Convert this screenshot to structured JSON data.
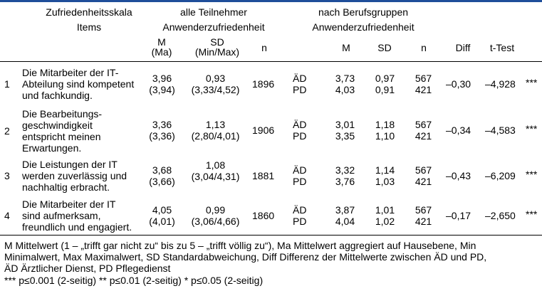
{
  "colors": {
    "accent_bar": "#1f4e9a"
  },
  "header": {
    "col_scale_1": "Zufriedenheitsskala",
    "col_scale_2": "Items",
    "group_all_1": "alle Teilnehmer",
    "group_all_2": "Anwenderzufriedenheit",
    "group_prof_1": "nach Berufsgruppen",
    "group_prof_2": "Anwenderzufriedenheit",
    "m_1": "M",
    "m_2": "(Ma)",
    "sd_1": "SD",
    "sd_2": "(Min/Max)",
    "n": "n",
    "pm": "M",
    "psd": "SD",
    "pn": "n",
    "diff": "Diff",
    "ttest": "t-Test"
  },
  "rows": [
    {
      "num": "1",
      "item": [
        "Die Mitarbeiter der IT-",
        "Abteilung sind kompetent",
        "und fachkundig."
      ],
      "m": "3,96",
      "ma": "(3,94)",
      "sd": "0,93",
      "minmax": "(3,33/4,52)",
      "n": "1896",
      "g1": "ÄD",
      "g2": "PD",
      "m1": "3,73",
      "m2": "4,03",
      "sd1": "0,97",
      "sd2": "0,91",
      "n1": "567",
      "n2": "421",
      "diff": "–0,30",
      "t": "–4,928",
      "sig": "***"
    },
    {
      "num": "2",
      "item": [
        "Die Bearbeitungs-",
        "geschwindigkeit",
        "entspricht meinen",
        "Erwartungen."
      ],
      "m": "3,36",
      "ma": "(3,36)",
      "sd": "1,13",
      "minmax": "(2,80/4,01)",
      "n": "1906",
      "g1": "ÄD",
      "g2": "PD",
      "m1": "3,01",
      "m2": "3,35",
      "sd1": "1,18",
      "sd2": "1,10",
      "n1": "567",
      "n2": "421",
      "diff": "–0,34",
      "t": "–4,583",
      "sig": "***"
    },
    {
      "num": "3",
      "item": [
        "Die Leistungen der IT",
        "werden zuverlässig und",
        "nachhaltig erbracht."
      ],
      "m": "3,68",
      "ma": "(3,66)",
      "sd": "1,08",
      "minmax": "(3,04/4,31)",
      "n": "1881",
      "g1": "ÄD",
      "g2": "PD",
      "m1": "3,32",
      "m2": "3,76",
      "sd1": "1,14",
      "sd2": "1,03",
      "n1": "567",
      "n2": "421",
      "diff": "–0,43",
      "t": "–6,209",
      "sig": "***"
    },
    {
      "num": "4",
      "item": [
        "Die Mitarbeiter der IT",
        "sind aufmerksam,",
        "freundlich und engagiert."
      ],
      "m": "4,05",
      "ma": "(4,01)",
      "sd": "0,99",
      "minmax": "(3,06/4,66)",
      "n": "1860",
      "g1": "ÄD",
      "g2": "PD",
      "m1": "3,87",
      "m2": "4,04",
      "sd1": "1,01",
      "sd2": "1,02",
      "n1": "567",
      "n2": "421",
      "diff": "–0,17",
      "t": "–2,650",
      "sig": "***"
    }
  ],
  "footnote": {
    "line1": "M Mittelwert (1 – „trifft gar nicht zu“ bis zu 5 – „trifft völlig zu“), Ma Mittelwert aggregiert auf Hausebene, Min",
    "line2": "Minimalwert, Max Maximalwert, SD Standardabweichung, Diff Differenz der Mittelwerte zwischen ÄD und PD,",
    "line3": "ÄD Ärztlicher Dienst, PD Pflegedienst",
    "line4": "*** p≤0.001 (2-seitig) ** p≤0.01 (2-seitig) * p≤0.05 (2-seitig)"
  }
}
